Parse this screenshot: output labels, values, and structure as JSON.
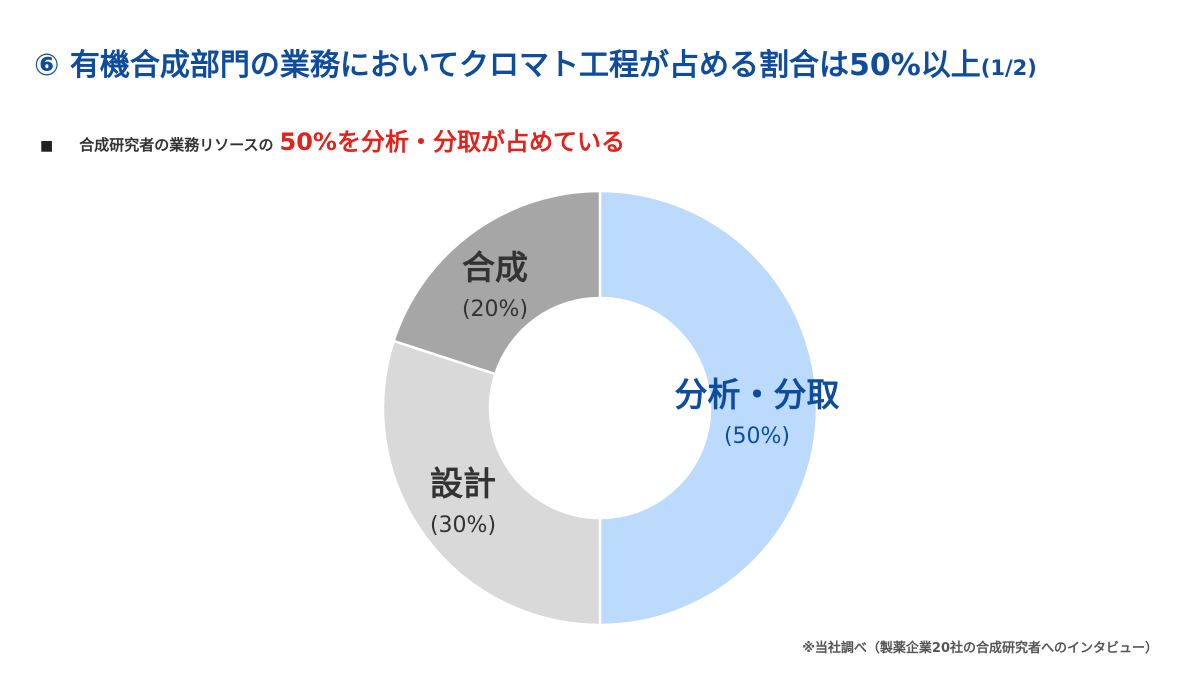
{
  "title": {
    "main": "⑥ 有機合成部門の業務においてクロマト工程が占める割合は50%以上",
    "suffix": "(1/2)"
  },
  "subtitle": {
    "bullet": "■",
    "prefix": "合成研究者の業務リソースの",
    "highlight": "50%を分析・分取が占めている"
  },
  "chart_data": {
    "type": "pie",
    "donut": true,
    "start": "top, clockwise",
    "slices": [
      {
        "name": "分析・分取",
        "value": 50,
        "label": "(50%)",
        "color": "#bcdbfc",
        "text_color": "#0f4c9c"
      },
      {
        "name": "設計",
        "value": 30,
        "label": "(30%)",
        "color": "#d9d9d9",
        "text_color": "#333333"
      },
      {
        "name": "合成",
        "value": 20,
        "label": "(20%)",
        "color": "#a6a6a6",
        "text_color": "#333333"
      }
    ]
  },
  "footnote": "※当社調べ（製薬企業20社の合成研究者へのインタビュー）"
}
